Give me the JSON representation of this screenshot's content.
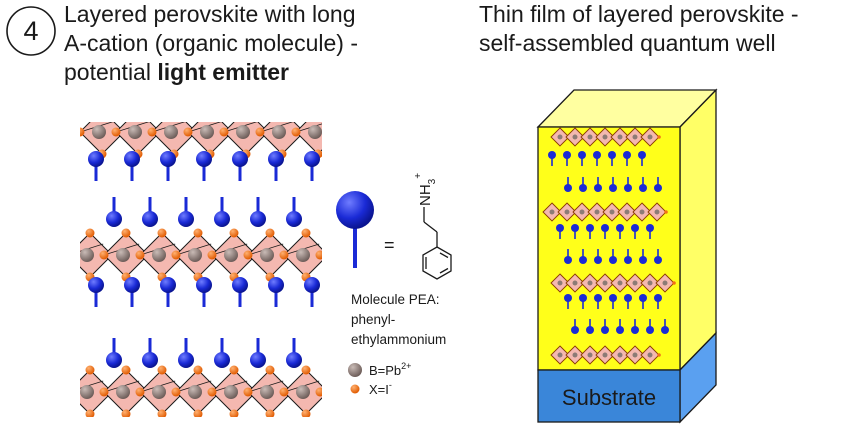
{
  "section_number": "4",
  "left_title": {
    "line1": "Layered perovskite with long",
    "line2": "A-cation (organic molecule) -",
    "line3_prefix": "potential ",
    "line3_bold": "light emitter"
  },
  "right_title": {
    "line1": "Thin film of layered perovskite -",
    "line2": "self-assembled quantum well"
  },
  "molecule": {
    "equals": "=",
    "formula_main": "NH",
    "formula_sub": "3",
    "formula_sup": "+",
    "caption_line1": "Molecule PEA:",
    "caption_line2": "phenyl-",
    "caption_line3": "ethylammonium"
  },
  "legend": {
    "b_label": "B=Pb",
    "b_sup": "2+",
    "x_label": "X=I",
    "x_sup": "-"
  },
  "substrate_label": "Substrate",
  "colors": {
    "octahedron_fill": "#f4b8b0",
    "pb_atom": "#8c7b76",
    "iodide": "#f07018",
    "molecule": "#1a2ad6",
    "film_front": "#ffff1a",
    "film_side": "#ffff66",
    "substrate_front": "#3a86d9",
    "substrate_side": "#5aa0f0"
  }
}
